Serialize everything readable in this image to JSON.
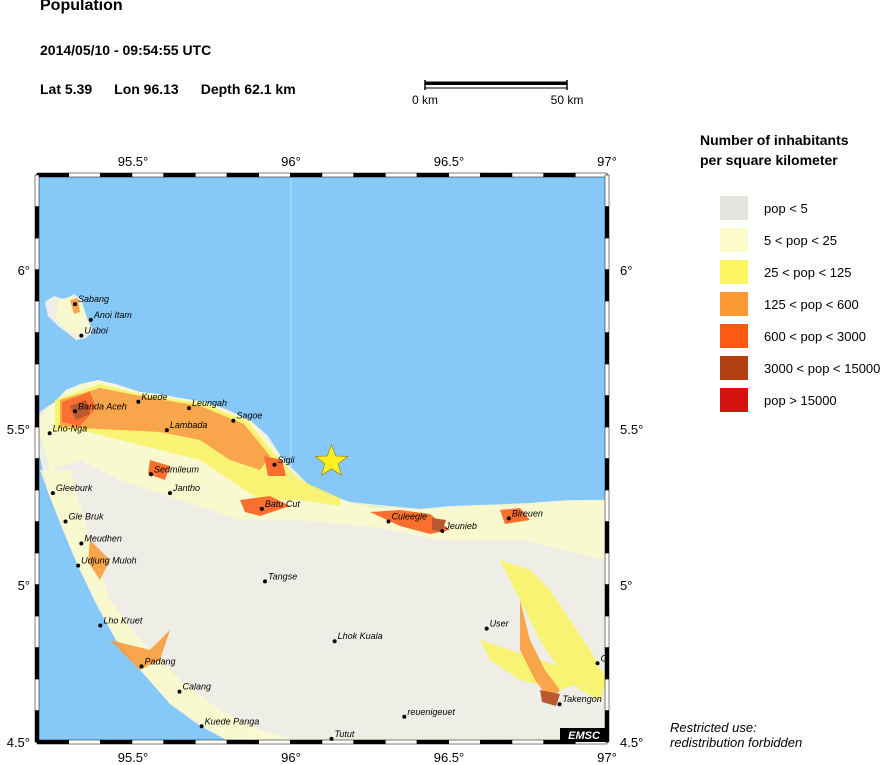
{
  "header": {
    "title": "Population",
    "datetime": "2014/05/10 - 09:54:55 UTC",
    "lat": "Lat  5.39",
    "lon": "Lon  96.13",
    "depth": "Depth  62.1 km"
  },
  "scalebar": {
    "left_label": "0 km",
    "right_label": "50 km"
  },
  "axes": {
    "lon_ticks": [
      "95.5°",
      "96°",
      "96.5°",
      "97°"
    ],
    "lat_ticks": [
      "6°",
      "5.5°",
      "5°",
      "4.5°"
    ],
    "lon_range": [
      95.2,
      97.0
    ],
    "lat_range": [
      4.5,
      6.3
    ]
  },
  "epicenter": {
    "lat": 5.39,
    "lon": 96.13,
    "color": "#ffee22"
  },
  "places": [
    {
      "name": "Sabang",
      "lon": 95.32,
      "lat": 5.89
    },
    {
      "name": "Anoi Itam",
      "lon": 95.37,
      "lat": 5.84
    },
    {
      "name": "Uaboi",
      "lon": 95.34,
      "lat": 5.79
    },
    {
      "name": "Kuede",
      "lon": 95.52,
      "lat": 5.58
    },
    {
      "name": "Leungah",
      "lon": 95.68,
      "lat": 5.56
    },
    {
      "name": "Banda Aceh",
      "lon": 95.32,
      "lat": 5.55
    },
    {
      "name": "Sagoe",
      "lon": 95.82,
      "lat": 5.52
    },
    {
      "name": "Lambada",
      "lon": 95.61,
      "lat": 5.49
    },
    {
      "name": "Lho-Nga",
      "lon": 95.24,
      "lat": 5.48
    },
    {
      "name": "Sigli",
      "lon": 95.95,
      "lat": 5.38
    },
    {
      "name": "Sedmileum",
      "lon": 95.56,
      "lat": 5.35
    },
    {
      "name": "Jantho",
      "lon": 95.62,
      "lat": 5.29
    },
    {
      "name": "Gleeburk",
      "lon": 95.25,
      "lat": 5.29
    },
    {
      "name": "Batu Cut",
      "lon": 95.91,
      "lat": 5.24
    },
    {
      "name": "Culeegle",
      "lon": 96.31,
      "lat": 5.2
    },
    {
      "name": "Jeunieb",
      "lon": 96.48,
      "lat": 5.17
    },
    {
      "name": "Bireuen",
      "lon": 96.69,
      "lat": 5.21
    },
    {
      "name": "Gle Bruk",
      "lon": 95.29,
      "lat": 5.2
    },
    {
      "name": "Meudhen",
      "lon": 95.34,
      "lat": 5.13
    },
    {
      "name": "Udjung Muloh",
      "lon": 95.33,
      "lat": 5.06
    },
    {
      "name": "Tangse",
      "lon": 95.92,
      "lat": 5.01
    },
    {
      "name": "Lho Kruet",
      "lon": 95.4,
      "lat": 4.87
    },
    {
      "name": "Lhok Kuala",
      "lon": 96.14,
      "lat": 4.82
    },
    {
      "name": "User",
      "lon": 96.62,
      "lat": 4.86
    },
    {
      "name": "Padang",
      "lon": 95.53,
      "lat": 4.74
    },
    {
      "name": "C",
      "lon": 96.97,
      "lat": 4.75
    },
    {
      "name": "Calang",
      "lon": 95.65,
      "lat": 4.66
    },
    {
      "name": "Takengon",
      "lon": 96.85,
      "lat": 4.62
    },
    {
      "name": "reuenigeuet",
      "lon": 96.36,
      "lat": 4.58
    },
    {
      "name": "Kuede Panga",
      "lon": 95.72,
      "lat": 4.55
    },
    {
      "name": "Tutut",
      "lon": 96.13,
      "lat": 4.51
    }
  ],
  "legend": {
    "title_line1": "Number of inhabitants",
    "title_line2": "per square kilometer",
    "items": [
      {
        "label": "pop < 5",
        "color": "#e6e6e0"
      },
      {
        "label": "5 < pop < 25",
        "color": "#fbfbcc"
      },
      {
        "label": "25 < pop < 125",
        "color": "#fbf560"
      },
      {
        "label": "125 < pop < 600",
        "color": "#fb9932"
      },
      {
        "label": "600 < pop < 3000",
        "color": "#fb5a10"
      },
      {
        "label": "3000 < pop < 15000",
        "color": "#b24010"
      },
      {
        "label": "pop > 15000",
        "color": "#d41010"
      }
    ]
  },
  "watermark": "EMSC",
  "footer": {
    "line1": "Restricted use:",
    "line2": "redistribution forbidden"
  },
  "colors": {
    "sea": "#86c8f8",
    "land": "#eeeee6",
    "frame": "#000000"
  }
}
